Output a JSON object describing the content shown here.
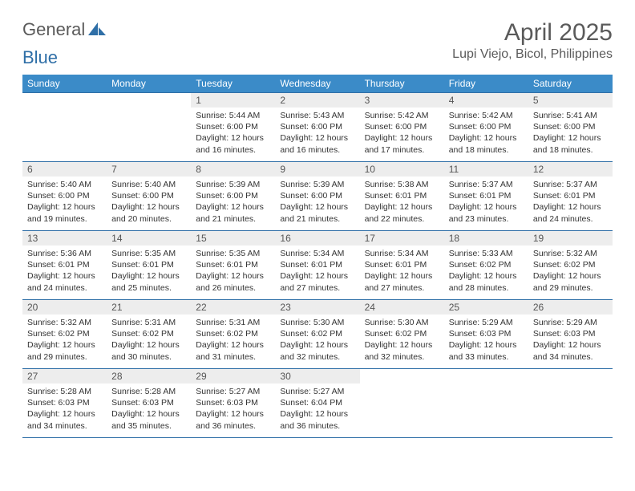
{
  "logo": {
    "text_general": "General",
    "text_blue": "Blue"
  },
  "header": {
    "month_title": "April 2025",
    "location": "Lupi Viejo, Bicol, Philippines"
  },
  "colors": {
    "header_bg": "#3b8bc8",
    "header_text": "#ffffff",
    "border": "#2f6fa7",
    "daynum_bg": "#ededed",
    "text": "#333333",
    "title_text": "#5a5a5a"
  },
  "weekdays": [
    "Sunday",
    "Monday",
    "Tuesday",
    "Wednesday",
    "Thursday",
    "Friday",
    "Saturday"
  ],
  "weeks": [
    [
      {
        "day": "",
        "sunrise": "",
        "sunset": "",
        "daylight": ""
      },
      {
        "day": "",
        "sunrise": "",
        "sunset": "",
        "daylight": ""
      },
      {
        "day": "1",
        "sunrise": "Sunrise: 5:44 AM",
        "sunset": "Sunset: 6:00 PM",
        "daylight": "Daylight: 12 hours and 16 minutes."
      },
      {
        "day": "2",
        "sunrise": "Sunrise: 5:43 AM",
        "sunset": "Sunset: 6:00 PM",
        "daylight": "Daylight: 12 hours and 16 minutes."
      },
      {
        "day": "3",
        "sunrise": "Sunrise: 5:42 AM",
        "sunset": "Sunset: 6:00 PM",
        "daylight": "Daylight: 12 hours and 17 minutes."
      },
      {
        "day": "4",
        "sunrise": "Sunrise: 5:42 AM",
        "sunset": "Sunset: 6:00 PM",
        "daylight": "Daylight: 12 hours and 18 minutes."
      },
      {
        "day": "5",
        "sunrise": "Sunrise: 5:41 AM",
        "sunset": "Sunset: 6:00 PM",
        "daylight": "Daylight: 12 hours and 18 minutes."
      }
    ],
    [
      {
        "day": "6",
        "sunrise": "Sunrise: 5:40 AM",
        "sunset": "Sunset: 6:00 PM",
        "daylight": "Daylight: 12 hours and 19 minutes."
      },
      {
        "day": "7",
        "sunrise": "Sunrise: 5:40 AM",
        "sunset": "Sunset: 6:00 PM",
        "daylight": "Daylight: 12 hours and 20 minutes."
      },
      {
        "day": "8",
        "sunrise": "Sunrise: 5:39 AM",
        "sunset": "Sunset: 6:00 PM",
        "daylight": "Daylight: 12 hours and 21 minutes."
      },
      {
        "day": "9",
        "sunrise": "Sunrise: 5:39 AM",
        "sunset": "Sunset: 6:00 PM",
        "daylight": "Daylight: 12 hours and 21 minutes."
      },
      {
        "day": "10",
        "sunrise": "Sunrise: 5:38 AM",
        "sunset": "Sunset: 6:01 PM",
        "daylight": "Daylight: 12 hours and 22 minutes."
      },
      {
        "day": "11",
        "sunrise": "Sunrise: 5:37 AM",
        "sunset": "Sunset: 6:01 PM",
        "daylight": "Daylight: 12 hours and 23 minutes."
      },
      {
        "day": "12",
        "sunrise": "Sunrise: 5:37 AM",
        "sunset": "Sunset: 6:01 PM",
        "daylight": "Daylight: 12 hours and 24 minutes."
      }
    ],
    [
      {
        "day": "13",
        "sunrise": "Sunrise: 5:36 AM",
        "sunset": "Sunset: 6:01 PM",
        "daylight": "Daylight: 12 hours and 24 minutes."
      },
      {
        "day": "14",
        "sunrise": "Sunrise: 5:35 AM",
        "sunset": "Sunset: 6:01 PM",
        "daylight": "Daylight: 12 hours and 25 minutes."
      },
      {
        "day": "15",
        "sunrise": "Sunrise: 5:35 AM",
        "sunset": "Sunset: 6:01 PM",
        "daylight": "Daylight: 12 hours and 26 minutes."
      },
      {
        "day": "16",
        "sunrise": "Sunrise: 5:34 AM",
        "sunset": "Sunset: 6:01 PM",
        "daylight": "Daylight: 12 hours and 27 minutes."
      },
      {
        "day": "17",
        "sunrise": "Sunrise: 5:34 AM",
        "sunset": "Sunset: 6:01 PM",
        "daylight": "Daylight: 12 hours and 27 minutes."
      },
      {
        "day": "18",
        "sunrise": "Sunrise: 5:33 AM",
        "sunset": "Sunset: 6:02 PM",
        "daylight": "Daylight: 12 hours and 28 minutes."
      },
      {
        "day": "19",
        "sunrise": "Sunrise: 5:32 AM",
        "sunset": "Sunset: 6:02 PM",
        "daylight": "Daylight: 12 hours and 29 minutes."
      }
    ],
    [
      {
        "day": "20",
        "sunrise": "Sunrise: 5:32 AM",
        "sunset": "Sunset: 6:02 PM",
        "daylight": "Daylight: 12 hours and 29 minutes."
      },
      {
        "day": "21",
        "sunrise": "Sunrise: 5:31 AM",
        "sunset": "Sunset: 6:02 PM",
        "daylight": "Daylight: 12 hours and 30 minutes."
      },
      {
        "day": "22",
        "sunrise": "Sunrise: 5:31 AM",
        "sunset": "Sunset: 6:02 PM",
        "daylight": "Daylight: 12 hours and 31 minutes."
      },
      {
        "day": "23",
        "sunrise": "Sunrise: 5:30 AM",
        "sunset": "Sunset: 6:02 PM",
        "daylight": "Daylight: 12 hours and 32 minutes."
      },
      {
        "day": "24",
        "sunrise": "Sunrise: 5:30 AM",
        "sunset": "Sunset: 6:02 PM",
        "daylight": "Daylight: 12 hours and 32 minutes."
      },
      {
        "day": "25",
        "sunrise": "Sunrise: 5:29 AM",
        "sunset": "Sunset: 6:03 PM",
        "daylight": "Daylight: 12 hours and 33 minutes."
      },
      {
        "day": "26",
        "sunrise": "Sunrise: 5:29 AM",
        "sunset": "Sunset: 6:03 PM",
        "daylight": "Daylight: 12 hours and 34 minutes."
      }
    ],
    [
      {
        "day": "27",
        "sunrise": "Sunrise: 5:28 AM",
        "sunset": "Sunset: 6:03 PM",
        "daylight": "Daylight: 12 hours and 34 minutes."
      },
      {
        "day": "28",
        "sunrise": "Sunrise: 5:28 AM",
        "sunset": "Sunset: 6:03 PM",
        "daylight": "Daylight: 12 hours and 35 minutes."
      },
      {
        "day": "29",
        "sunrise": "Sunrise: 5:27 AM",
        "sunset": "Sunset: 6:03 PM",
        "daylight": "Daylight: 12 hours and 36 minutes."
      },
      {
        "day": "30",
        "sunrise": "Sunrise: 5:27 AM",
        "sunset": "Sunset: 6:04 PM",
        "daylight": "Daylight: 12 hours and 36 minutes."
      },
      {
        "day": "",
        "sunrise": "",
        "sunset": "",
        "daylight": ""
      },
      {
        "day": "",
        "sunrise": "",
        "sunset": "",
        "daylight": ""
      },
      {
        "day": "",
        "sunrise": "",
        "sunset": "",
        "daylight": ""
      }
    ]
  ]
}
